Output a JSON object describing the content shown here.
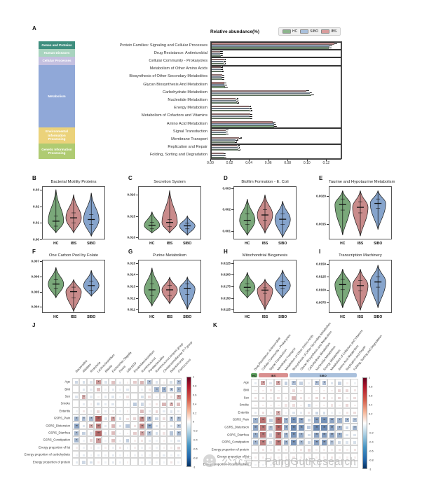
{
  "panel_a": {
    "label": "A",
    "legend_title": "Relative abundance(%)",
    "legend": [
      {
        "name": "HC",
        "color": "#8CB48C"
      },
      {
        "name": "SIBO",
        "color": "#A9C0DC"
      },
      {
        "name": "IBS",
        "color": "#D99C9C"
      }
    ],
    "blocks": [
      {
        "label": "Genes and Proteins",
        "color": "#3E8E7E",
        "rows": 1
      },
      {
        "label": "Human Diseases",
        "color": "#A9D4BF",
        "rows": 1
      },
      {
        "label": "Cellular Processes",
        "color": "#C4C0E0",
        "rows": 1
      },
      {
        "label": "Metabolism",
        "color": "#90A8D8",
        "rows": 8
      },
      {
        "label": "Environmental Information Processing",
        "color": "#EBD27A",
        "rows": 2
      },
      {
        "label": "Genetic Information Processing",
        "color": "#AFCB72",
        "rows": 2
      }
    ],
    "x_ticks": [
      "0.00",
      "0.02",
      "0.04",
      "0.06",
      "0.08",
      "0.10",
      "0.12"
    ],
    "axis_max": 0.135,
    "chart_data": {
      "type": "bar",
      "orientation": "horizontal",
      "title": "Relative abundance(%)",
      "xlabel": "Relative abundance(%)",
      "xlim": [
        0,
        0.135
      ],
      "grid": false,
      "legend_position": "top-right",
      "categories": [
        "Protein Families: Signaling and Cellular Processes",
        "Drug Resistance: Antimicrobial",
        "Cellular Community - Prokaryotes",
        "Metabolism of Other Amino Acids",
        "Biosynthesis of Other Secondary Metabolites",
        "Glycan Biosynthesis And Metabolism",
        "Carbohydrate Metabolism",
        "Nucleotide Metabolism",
        "Energy Metabolism",
        "Metabolism of Cofactors and Vitamins",
        "Amino Acid Metabolism",
        "Signal Transduction",
        "Membrane Transport",
        "Replication and Repair",
        "Folding, Sorting and Degradation"
      ],
      "series": [
        {
          "name": "HC",
          "values": [
            0.122,
            0.01,
            0.013,
            0.0105,
            0.0115,
            0.0145,
            0.104,
            0.0265,
            0.04,
            0.0405,
            0.0655,
            0.0155,
            0.0245,
            0.028,
            0.0135
          ]
        },
        {
          "name": "SIBO",
          "values": [
            0.123,
            0.0095,
            0.0125,
            0.01,
            0.011,
            0.014,
            0.102,
            0.026,
            0.0395,
            0.04,
            0.065,
            0.015,
            0.0255,
            0.0275,
            0.013
          ]
        },
        {
          "name": "IBS",
          "values": [
            0.128,
            0.0095,
            0.013,
            0.01,
            0.0115,
            0.0135,
            0.099,
            0.0255,
            0.039,
            0.0405,
            0.064,
            0.0155,
            0.029,
            0.027,
            0.013
          ]
        }
      ],
      "error": 0.0018,
      "group_boxes_rows": [
        [
          0,
          1
        ],
        [
          1,
          1
        ],
        [
          2,
          1
        ],
        [
          3,
          8
        ],
        [
          11,
          2
        ],
        [
          13,
          2
        ]
      ]
    }
  },
  "violin_categories": [
    "HC",
    "IBS",
    "SIBO"
  ],
  "violin_colors": {
    "HC": "#7AA87A",
    "IBS": "#C98B8B",
    "SIBO": "#86A4CC"
  },
  "violin_panels": [
    {
      "label": "B",
      "title": "Bacterial Motility Proteins",
      "ymin": 0.0,
      "ymax": 0.032,
      "yticks": [
        "0.00",
        "0.01",
        "0.02",
        "0.03"
      ],
      "chart_data": {
        "type": "violin",
        "stats": {
          "HC": [
            0.004,
            0.008,
            0.011,
            0.014,
            0.03
          ],
          "IBS": [
            0.004,
            0.01,
            0.013,
            0.016,
            0.027
          ],
          "SIBO": [
            0.002,
            0.009,
            0.012,
            0.015,
            0.028
          ]
        }
      }
    },
    {
      "label": "C",
      "title": "Secretion System",
      "ymin": 0.0095,
      "ymax": 0.022,
      "yticks": [
        "0.010",
        "0.015",
        "0.020"
      ],
      "chart_data": {
        "type": "violin",
        "stats": {
          "HC": [
            0.011,
            0.012,
            0.0128,
            0.0135,
            0.016
          ],
          "IBS": [
            0.011,
            0.0125,
            0.0135,
            0.0142,
            0.021
          ],
          "SIBO": [
            0.0105,
            0.012,
            0.0127,
            0.0133,
            0.015
          ]
        }
      }
    },
    {
      "label": "D",
      "title": "Biofilm Formation - E. Coli",
      "ymin": 0.0006,
      "ymax": 0.0031,
      "yticks": [
        "0.001",
        "0.002",
        "0.003"
      ],
      "chart_data": {
        "type": "violin",
        "stats": {
          "HC": [
            0.0008,
            0.0013,
            0.0015,
            0.0018,
            0.0025
          ],
          "IBS": [
            0.0009,
            0.0015,
            0.00175,
            0.002,
            0.0027
          ],
          "SIBO": [
            0.0007,
            0.0013,
            0.00155,
            0.0018,
            0.0024
          ]
        }
      }
    },
    {
      "label": "E",
      "title": "Taurine and Hypotaurine Metabolism",
      "ymin": 0.00122,
      "ymax": 0.00218,
      "yticks": [
        "0.0015",
        "0.0020"
      ],
      "chart_data": {
        "type": "violin",
        "stats": {
          "HC": [
            0.0013,
            0.00175,
            0.00185,
            0.00195,
            0.0021
          ],
          "IBS": [
            0.00128,
            0.0017,
            0.0018,
            0.0019,
            0.0021
          ],
          "SIBO": [
            0.0014,
            0.00178,
            0.00187,
            0.00195,
            0.0021
          ]
        }
      }
    },
    {
      "label": "F",
      "title": "One Carbon Pool by Folate",
      "ymin": 0.0036,
      "ymax": 0.0071,
      "yticks": [
        "0.004",
        "0.005",
        "0.006",
        "0.007"
      ],
      "chart_data": {
        "type": "violin",
        "stats": {
          "HC": [
            0.0046,
            0.0052,
            0.0055,
            0.0058,
            0.0066
          ],
          "IBS": [
            0.0037,
            0.0046,
            0.005,
            0.0053,
            0.0058
          ],
          "SIBO": [
            0.0047,
            0.0051,
            0.0054,
            0.0057,
            0.0064
          ]
        }
      }
    },
    {
      "label": "G",
      "title": "Purine Metabolism",
      "ymin": 0.0107,
      "ymax": 0.0153,
      "yticks": [
        "0.011",
        "0.012",
        "0.013",
        "0.014",
        "0.015"
      ],
      "chart_data": {
        "type": "violin",
        "stats": {
          "HC": [
            0.0113,
            0.0122,
            0.0127,
            0.0132,
            0.0146
          ],
          "IBS": [
            0.0115,
            0.0122,
            0.0127,
            0.0131,
            0.0138
          ],
          "SIBO": [
            0.011,
            0.0123,
            0.0128,
            0.0132,
            0.0138
          ]
        }
      }
    },
    {
      "label": "H",
      "title": "Mitochondrial Biogenesis",
      "ymin": 0.0118,
      "ymax": 0.0232,
      "yticks": [
        "0.0125",
        "0.0150",
        "0.0175",
        "0.0200",
        "0.0225"
      ],
      "chart_data": {
        "type": "violin",
        "stats": {
          "HC": [
            0.015,
            0.0165,
            0.0173,
            0.018,
            0.0205
          ],
          "IBS": [
            0.0125,
            0.016,
            0.0167,
            0.0172,
            0.019
          ],
          "SIBO": [
            0.015,
            0.017,
            0.0177,
            0.0185,
            0.021
          ]
        }
      }
    },
    {
      "label": "I",
      "title": "Transcription Machinery",
      "ymin": 0.0055,
      "ymax": 0.0158,
      "yticks": [
        "0.0075",
        "0.0100",
        "0.0125",
        "0.0150"
      ],
      "chart_data": {
        "type": "violin",
        "stats": {
          "HC": [
            0.0065,
            0.01,
            0.011,
            0.012,
            0.014
          ],
          "IBS": [
            0.006,
            0.0098,
            0.0108,
            0.0118,
            0.014
          ],
          "SIBO": [
            0.0065,
            0.0105,
            0.0115,
            0.0125,
            0.0148
          ]
        }
      }
    }
  ],
  "colorbar_ticks": [
    "1",
    "0.8",
    "0.6",
    "0.4",
    "0.2",
    "0",
    "-0.2",
    "-0.4",
    "-0.6",
    "-0.8",
    "-1"
  ],
  "panel_j": {
    "label": "J",
    "col_labels": [
      "Bacteroides",
      "Alistipes",
      "Roseburia",
      "Lachnoclostridium",
      "Blautia",
      "Escherichia-Shigella",
      "Dorea",
      "UBA1819",
      "Erysipelatoclostridium",
      "Ruminococcus",
      "Parabacteroides",
      "Ruminococcus torques group",
      "Christensenellaceae R-7 group",
      "Butyricimonas",
      "Coprococcus"
    ],
    "row_labels": [
      "Age",
      "BMI",
      "Sex",
      "Smoke",
      "Enteritis",
      "GSRS_Pain",
      "GSRS_Distension",
      "GSRS_Diarrhea",
      "GSRS_Constipation",
      "Energy proportion of fat",
      "Energy proportion of carbohydrate",
      "Energy proportion of protein"
    ],
    "chart_data": {
      "type": "heatmap",
      "value_range": [
        -1,
        1
      ],
      "values": [
        [
          -0.15,
          -0.12,
          -0.1,
          0.3,
          -0.1,
          0.18,
          -0.08,
          0.05,
          0.15,
          0.22,
          -0.25,
          -0.1,
          0.05,
          -0.12,
          -0.25
        ],
        [
          0.0,
          -0.1,
          -0.08,
          0.18,
          -0.05,
          -0.08,
          -0.05,
          -0.1,
          0.0,
          -0.05,
          0.08,
          -0.28,
          -0.3,
          -0.25,
          -0.28
        ],
        [
          -0.1,
          0.25,
          -0.08,
          0.05,
          -0.08,
          -0.1,
          -0.05,
          0.08,
          0.0,
          -0.12,
          0.1,
          -0.05,
          0.05,
          0.08,
          0.3
        ],
        [
          0.0,
          -0.08,
          0.05,
          -0.12,
          -0.08,
          -0.1,
          0.0,
          -0.05,
          -0.2,
          -0.15,
          0.05,
          0.08,
          0.22,
          0.25,
          0.2
        ],
        [
          -0.05,
          0.08,
          -0.05,
          0.12,
          -0.08,
          0.05,
          -0.05,
          0.05,
          0.0,
          0.2,
          -0.08,
          0.12,
          -0.08,
          -0.1,
          -0.08
        ],
        [
          -0.3,
          -0.25,
          -0.28,
          0.48,
          -0.1,
          0.28,
          -0.12,
          0.08,
          0.12,
          0.35,
          -0.3,
          -0.15,
          0.1,
          -0.25,
          -0.28
        ],
        [
          -0.35,
          -0.1,
          0.25,
          0.38,
          -0.08,
          0.22,
          -0.1,
          -0.22,
          0.08,
          0.35,
          -0.35,
          -0.1,
          0.05,
          -0.1,
          -0.25
        ],
        [
          -0.28,
          -0.18,
          -0.1,
          0.45,
          -0.08,
          0.2,
          -0.05,
          0.05,
          0.15,
          0.28,
          -0.25,
          -0.12,
          0.08,
          -0.22,
          -0.28
        ],
        [
          -0.28,
          -0.05,
          0.12,
          0.3,
          -0.05,
          0.18,
          -0.05,
          -0.18,
          0.05,
          0.08,
          -0.08,
          -0.05,
          0.05,
          -0.05,
          -0.1
        ],
        [
          0.05,
          -0.05,
          0.05,
          -0.05,
          0.05,
          -0.05,
          0.08,
          -0.05,
          0.05,
          -0.05,
          0.05,
          -0.05,
          0.05,
          0.05,
          0.12
        ],
        [
          -0.05,
          -0.08,
          -0.05,
          -0.08,
          -0.05,
          -0.08,
          -0.05,
          -0.05,
          -0.05,
          -0.05,
          -0.05,
          -0.05,
          -0.08,
          -0.05,
          -0.08
        ],
        [
          -0.08,
          -0.15,
          -0.12,
          0.05,
          -0.05,
          -0.08,
          -0.05,
          0.05,
          0.0,
          -0.05,
          -0.08,
          -0.05,
          -0.05,
          0.08,
          -0.05
        ]
      ]
    }
  },
  "panel_k": {
    "label": "K",
    "band": [
      {
        "label": "HC",
        "color": "#5B9E5B",
        "cols": 1
      },
      {
        "label": "IBS",
        "color": "#D98F8F",
        "cols": 4
      },
      {
        "label": "SIBO",
        "color": "#A9C0DC",
        "cols": 9
      }
    ],
    "col_labels": [
      "Drug Resistance: Antimicrobial",
      "Cellular Community - Prokaryotes",
      "Signal Transduction",
      "Membrane Transport",
      "Metabolism of Other Amino Acids",
      "Biosynthesis of Other Secondary Metabolites",
      "Glycan Biosynthesis and Metabolism",
      "Carbohydrate Metabolism",
      "Nucleotide Metabolism",
      "Energy Metabolism",
      "Metabolism of Cofactors and Vitamins",
      "Amino Acid Metabolism",
      "Replication and Repair",
      "Folding, Sorting and Degradation"
    ],
    "row_labels": [
      "Age",
      "BMI",
      "Sex",
      "Smoke",
      "Enteritis",
      "GSRS_Pain",
      "GSRS_Distension",
      "GSRS_Diarrhea",
      "GSRS_Constipation",
      "Energy proportion of protein",
      "Energy proportion of fat",
      "Energy proportion of carbohydrate"
    ],
    "chart_data": {
      "type": "heatmap",
      "value_range": [
        -1,
        1
      ],
      "values": [
        [
          -0.08,
          0.28,
          -0.1,
          0.28,
          -0.18,
          -0.25,
          -0.18,
          -0.05,
          -0.25,
          -0.25,
          -0.1,
          -0.18,
          0.05,
          -0.05
        ],
        [
          0.05,
          0.05,
          0.08,
          0.05,
          0.0,
          0.1,
          0.05,
          0.0,
          0.05,
          0.05,
          0.05,
          0.12,
          0.12,
          0.08
        ],
        [
          0.08,
          0.08,
          0.05,
          0.1,
          0.05,
          0.22,
          0.08,
          0.05,
          0.12,
          0.12,
          0.05,
          0.12,
          0.05,
          0.1
        ],
        [
          0.05,
          0.05,
          0.05,
          0.05,
          0.08,
          0.1,
          0.05,
          -0.15,
          0.05,
          0.05,
          0.08,
          0.05,
          0.12,
          0.05
        ],
        [
          -0.08,
          0.1,
          -0.05,
          0.25,
          -0.05,
          -0.1,
          -0.08,
          0.08,
          -0.15,
          -0.12,
          -0.05,
          -0.05,
          0.08,
          0.1
        ],
        [
          -0.3,
          0.42,
          -0.18,
          0.45,
          -0.3,
          -0.42,
          -0.35,
          -0.15,
          -0.38,
          -0.42,
          -0.35,
          -0.3,
          -0.28,
          -0.25
        ],
        [
          -0.35,
          0.4,
          -0.25,
          0.45,
          -0.32,
          -0.45,
          -0.4,
          -0.2,
          -0.45,
          -0.45,
          -0.38,
          -0.3,
          -0.15,
          -0.3
        ],
        [
          -0.32,
          0.4,
          -0.15,
          0.42,
          -0.28,
          -0.4,
          -0.32,
          -0.12,
          -0.35,
          -0.38,
          -0.35,
          -0.32,
          -0.1,
          -0.1
        ],
        [
          -0.28,
          0.38,
          -0.12,
          0.4,
          -0.3,
          -0.4,
          -0.28,
          -0.15,
          -0.35,
          -0.38,
          -0.25,
          -0.15,
          -0.1,
          -0.12
        ],
        [
          0.05,
          0.08,
          0.05,
          0.08,
          0.05,
          0.05,
          0.08,
          0.12,
          0.05,
          0.05,
          0.05,
          0.08,
          0.05,
          0.08
        ],
        [
          0.05,
          0.05,
          0.05,
          0.05,
          0.05,
          0.08,
          0.05,
          0.05,
          0.05,
          0.05,
          0.08,
          0.05,
          0.05,
          0.05
        ],
        [
          -0.05,
          -0.05,
          -0.05,
          -0.05,
          -0.05,
          -0.05,
          -0.05,
          -0.05,
          -0.05,
          -0.05,
          -0.05,
          -0.05,
          -0.05,
          -0.05
        ]
      ]
    }
  },
  "watermark": {
    "text": "公众号 · PangGutResearch"
  }
}
